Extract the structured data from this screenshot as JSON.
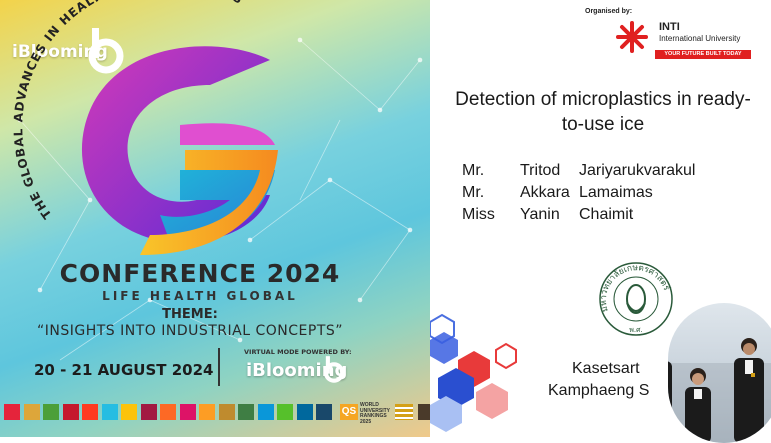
{
  "poster": {
    "brand_name": "iBlooming",
    "arc_title": "THE GLOBAL ADVANCES IN HEALTH & LIFE SCIENCES",
    "conference_title": "CONFERENCE 2024",
    "conference_subtitle": "LIFE HEALTH GLOBAL",
    "theme_label": "THEME:",
    "theme_text": "“INSIGHTS INTO INDUSTRIAL CONCEPTS”",
    "dates": "20 - 21 AUGUST 2024",
    "virtual_mode_label": "VIRTUAL MODE POWERED BY:",
    "powered_by": "iBlooming",
    "qs_badge": "QS",
    "ranking_text": "WORLD UNIVERSITY RANKINGS",
    "ranking_year": "2025",
    "sdg_colors": [
      "#e5243b",
      "#dda63a",
      "#4c9f38",
      "#c5192d",
      "#ff3a21",
      "#26bde2",
      "#fcc30b",
      "#a21942",
      "#fd6925",
      "#dd1367",
      "#fd9d24",
      "#bf8b2e",
      "#3f7e44",
      "#0a97d9",
      "#56c02b",
      "#00689d",
      "#19486a"
    ]
  },
  "slide": {
    "organised_by": "Organised by:",
    "org_name": "INTI",
    "org_full": "International University",
    "org_tagline": "YOUR FUTURE BUILT TODAY",
    "title_line1": "Detection of microplastics in ready-",
    "title_line2": "to-use ice",
    "authors": [
      {
        "prefix": "Mr.",
        "first": "Tritod",
        "last": "Jariyarukvarakul"
      },
      {
        "prefix": "Mr.",
        "first": "Akkara",
        "last": "Lamaimas"
      },
      {
        "prefix": "Miss",
        "first": "Yanin",
        "last": "Chaimit"
      }
    ],
    "seal_text": "มหาวิทยาลัยเกษตรศาสตร์",
    "seal_sub": "พ.ศ.",
    "institution_line1": "Kasetsart",
    "institution_line2": "Kamphaeng S"
  },
  "colors": {
    "inti_red": "#e02020",
    "g_purple": "#8a2be2",
    "g_orange": "#f7a21b"
  }
}
